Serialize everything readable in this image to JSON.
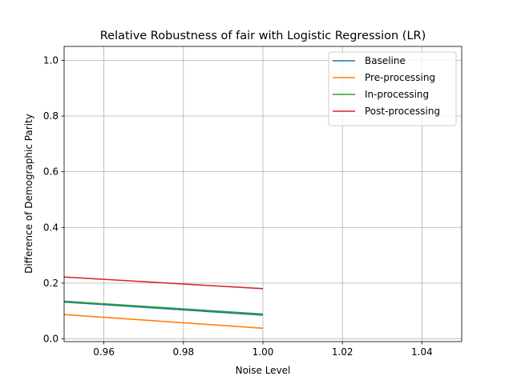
{
  "chart_data": {
    "type": "line",
    "title": "Relative Robustness of fair with Logistic Regression (LR)",
    "xlabel": "Noise Level",
    "ylabel": "Difference of Demographic Parity",
    "xlim": [
      0.95,
      1.05
    ],
    "ylim": [
      -0.01,
      1.05
    ],
    "grid": true,
    "legend_position": "top-right",
    "xticks": [
      0.96,
      0.98,
      1.0,
      1.02,
      1.04
    ],
    "xtick_labels": [
      "0.96",
      "0.98",
      "1.00",
      "1.02",
      "1.04"
    ],
    "yticks": [
      0.0,
      0.2,
      0.4,
      0.6,
      0.8,
      1.0
    ],
    "ytick_labels": [
      "0.0",
      "0.2",
      "0.4",
      "0.6",
      "0.8",
      "1.0"
    ],
    "series": [
      {
        "name": "Baseline",
        "color": "#1f77b4",
        "x": [
          0.95,
          1.0
        ],
        "y": [
          0.132,
          0.085
        ]
      },
      {
        "name": "Pre-processing",
        "color": "#ff7f0e",
        "x": [
          0.95,
          1.0
        ],
        "y": [
          0.087,
          0.038
        ]
      },
      {
        "name": "In-processing",
        "color": "#2ca02c",
        "x": [
          0.95,
          1.0
        ],
        "y": [
          0.135,
          0.089
        ]
      },
      {
        "name": "Post-processing",
        "color": "#d62728",
        "x": [
          0.95,
          1.0
        ],
        "y": [
          0.222,
          0.18
        ]
      }
    ]
  }
}
